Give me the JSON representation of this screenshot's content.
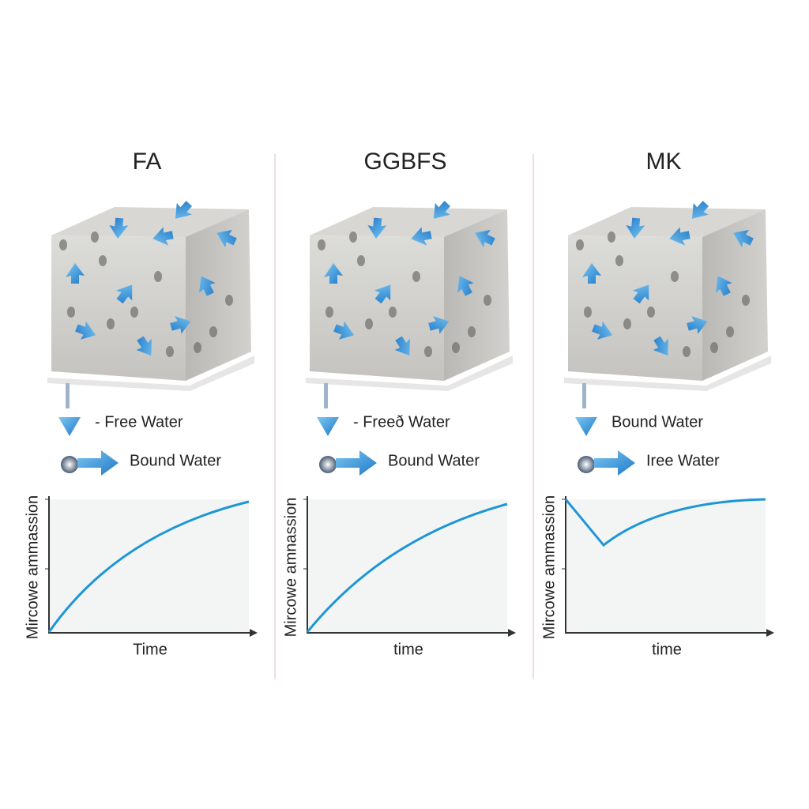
{
  "panels": [
    {
      "title": "FA",
      "legend": [
        "- Free Water",
        "Bound Water"
      ],
      "chart": {
        "y_label": "Mircowe ammassion",
        "x_label": "Time"
      }
    },
    {
      "title": "GGBFS",
      "legend": [
        "- Freeð Water",
        "Bound Water"
      ],
      "chart": {
        "y_label": "Mircowe amnassion",
        "x_label": "time"
      }
    },
    {
      "title": "MK",
      "legend": [
        "Bound Water",
        "Iree Water"
      ],
      "chart": {
        "y_label": "Mircowe ammassion",
        "x_label": "time"
      }
    }
  ]
}
